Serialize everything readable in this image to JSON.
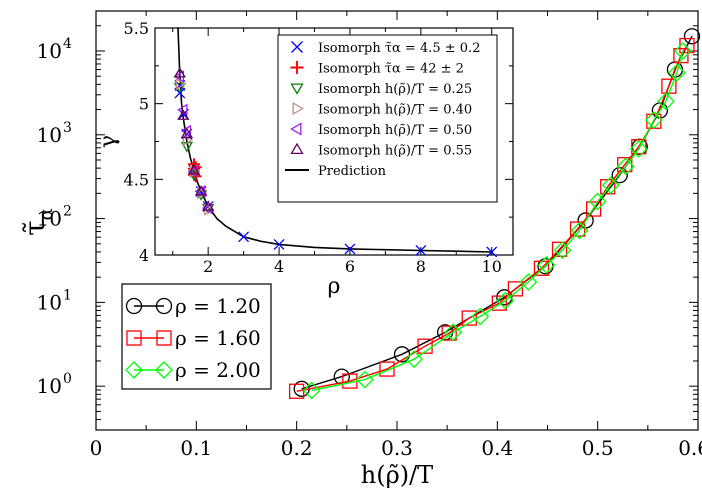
{
  "chart_data": [
    {
      "type": "line",
      "xlabel": "h(ρ̃)/T",
      "ylabel": "τ̃_α",
      "xlim": [
        0,
        0.6
      ],
      "ylim": [
        0.3,
        30000
      ],
      "yscale": "log",
      "x_ticks": [
        "0",
        "0.1",
        "0.2",
        "0.3",
        "0.4",
        "0.5",
        "0.6"
      ],
      "y_ticks": [
        {
          "base": "10",
          "exp": "0"
        },
        {
          "base": "10",
          "exp": "1"
        },
        {
          "base": "10",
          "exp": "2"
        },
        {
          "base": "10",
          "exp": "3"
        },
        {
          "base": "10",
          "exp": "4"
        }
      ],
      "legend_position": "bottom-left",
      "series": [
        {
          "name": "ρ = 1.20",
          "marker": "circle",
          "color": "#000000",
          "x": [
            0.205,
            0.245,
            0.305,
            0.348,
            0.407,
            0.448,
            0.488,
            0.522,
            0.542,
            0.562,
            0.577,
            0.594
          ],
          "y": [
            0.93,
            1.3,
            2.4,
            4.4,
            11.5,
            27,
            95,
            330,
            720,
            1950,
            6000,
            15000
          ]
        },
        {
          "name": "ρ = 1.60",
          "marker": "square",
          "color": "#ff0000",
          "x": [
            0.2,
            0.253,
            0.29,
            0.328,
            0.352,
            0.372,
            0.402,
            0.418,
            0.444,
            0.462,
            0.48,
            0.496,
            0.51,
            0.527,
            0.541,
            0.556,
            0.571,
            0.583,
            0.589
          ],
          "y": [
            0.87,
            1.15,
            1.6,
            3.0,
            4.3,
            6.5,
            9.8,
            14.5,
            25.5,
            43,
            75,
            130,
            240,
            440,
            720,
            1450,
            3800,
            8800,
            11600
          ]
        },
        {
          "name": "ρ = 2.00",
          "marker": "diamond",
          "color": "#00ff00",
          "x": [
            0.215,
            0.268,
            0.317,
            0.356,
            0.383,
            0.408,
            0.431,
            0.449,
            0.465,
            0.482,
            0.5,
            0.513,
            0.528,
            0.541,
            0.556,
            0.568,
            0.579,
            0.585
          ],
          "y": [
            0.89,
            1.2,
            2.1,
            4.4,
            6.8,
            10.5,
            17.5,
            28,
            42,
            72,
            160,
            250,
            420,
            680,
            1500,
            2500,
            5500,
            10000
          ]
        }
      ]
    },
    {
      "type": "scatter",
      "role": "inset",
      "xlabel": "ρ",
      "ylabel": "γ",
      "xlim": [
        0.5,
        10.6
      ],
      "ylim": [
        4.0,
        5.5
      ],
      "x_ticks": [
        "2",
        "4",
        "6",
        "8",
        "10"
      ],
      "y_ticks": [
        "4",
        "4.5",
        "5",
        "5.5"
      ],
      "legend_position": "top-right",
      "prediction": {
        "name": "Prediction",
        "x": [
          1.15,
          1.2,
          1.25,
          1.3,
          1.4,
          1.5,
          1.6,
          1.7,
          1.8,
          2.0,
          2.25,
          2.5,
          3.0,
          3.5,
          4.0,
          5.0,
          6.0,
          7.0,
          8.0,
          9.0,
          10.0
        ],
        "y": [
          5.5,
          5.19,
          5.0,
          4.9,
          4.75,
          4.64,
          4.56,
          4.48,
          4.42,
          4.32,
          4.24,
          4.19,
          4.12,
          4.09,
          4.07,
          4.05,
          4.04,
          4.035,
          4.03,
          4.025,
          4.02
        ]
      },
      "series": [
        {
          "name": "Isomorph τ̃α = 4.5 ± 0.2",
          "marker": "x",
          "color": "#0000ff",
          "x": [
            1.2,
            1.2,
            1.3,
            1.4,
            1.6,
            1.8,
            2.0,
            3.0,
            4.0,
            6.0,
            8.0,
            10.0
          ],
          "y": [
            5.12,
            5.07,
            4.93,
            4.8,
            4.56,
            4.42,
            4.32,
            4.12,
            4.07,
            4.04,
            4.03,
            4.02
          ]
        },
        {
          "name": "Isomorph τ̃α = 42 ± 2",
          "marker": "plus",
          "color": "#ff0000",
          "x": [
            1.6,
            1.6,
            1.65,
            1.6,
            1.65
          ],
          "y": [
            4.6,
            4.57,
            4.58,
            4.53,
            4.52
          ]
        },
        {
          "name": "Isomorph h(ρ̃)/T = 0.25",
          "marker": "triangle-down",
          "color": "#008000",
          "x": [
            1.2,
            1.4,
            1.6,
            1.8,
            2.0
          ],
          "y": [
            5.11,
            4.72,
            4.53,
            4.4,
            4.31
          ]
        },
        {
          "name": "Isomorph h(ρ̃)/T = 0.40",
          "marker": "triangle-right",
          "color": "#cc8888",
          "x": [
            1.2,
            1.4,
            1.6,
            1.8,
            2.0
          ],
          "y": [
            5.13,
            4.76,
            4.55,
            4.41,
            4.3
          ]
        },
        {
          "name": "Isomorph h(ρ̃)/T = 0.50",
          "marker": "triangle-left",
          "color": "#a020f0",
          "x": [
            1.2,
            1.3,
            1.4,
            1.6,
            1.8,
            2.0
          ],
          "y": [
            5.18,
            4.96,
            4.82,
            4.55,
            4.42,
            4.31
          ]
        },
        {
          "name": "Isomorph h(ρ̃)/T = 0.55",
          "marker": "triangle-up",
          "color": "#600060",
          "x": [
            1.2,
            1.3,
            1.4,
            1.6,
            1.8,
            2.0
          ],
          "y": [
            5.2,
            4.92,
            4.8,
            4.56,
            4.42,
            4.32
          ]
        }
      ]
    }
  ]
}
